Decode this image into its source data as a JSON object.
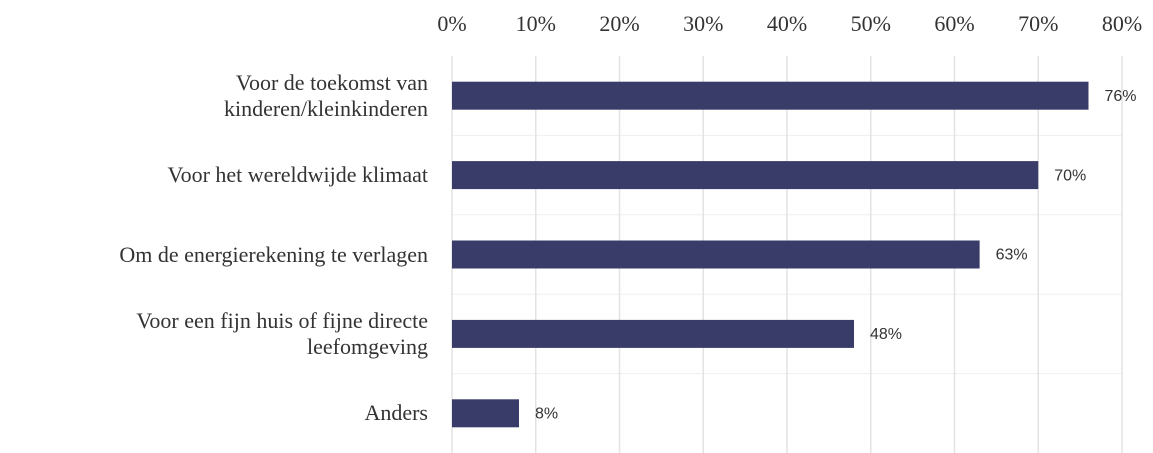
{
  "chart_data": {
    "type": "barh",
    "categories": [
      "Voor de toekomst van\nkinderen/kleinkinderen",
      "Voor het wereldwijde klimaat",
      "Om de energierekening te verlagen",
      "Voor een fijn huis of fijne directe\nleefomgeving",
      "Anders"
    ],
    "values": [
      76,
      70,
      63,
      48,
      8
    ],
    "value_labels": [
      "76%",
      "70%",
      "63%",
      "48%",
      "8%"
    ],
    "color": "#393c68",
    "xlim": [
      0,
      80
    ],
    "xticks": [
      {
        "value": 0,
        "label": "0%"
      },
      {
        "value": 10,
        "label": "10%"
      },
      {
        "value": 20,
        "label": "20%"
      },
      {
        "value": 30,
        "label": "30%"
      },
      {
        "value": 40,
        "label": "40%"
      },
      {
        "value": 50,
        "label": "50%"
      },
      {
        "value": 60,
        "label": "60%"
      },
      {
        "value": 70,
        "label": "70%"
      },
      {
        "value": 80,
        "label": "80%"
      }
    ],
    "grid": true
  }
}
